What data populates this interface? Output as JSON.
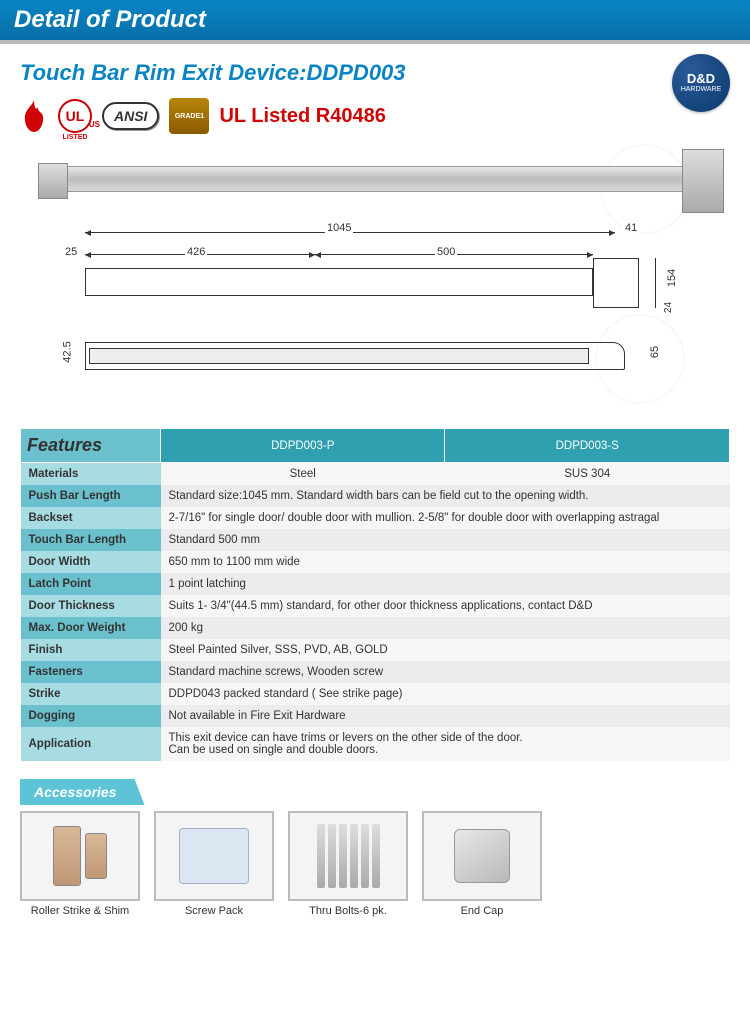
{
  "header": {
    "title": "Detail of Product"
  },
  "product": {
    "title": "Touch Bar Rim Exit Device:DDPD003",
    "ul_text": "UL Listed R40486",
    "ansi": "ANSI",
    "ul_mark": "UL",
    "ul_us": "US",
    "ul_listed": "LISTED",
    "grade": "GRADE1"
  },
  "logo": {
    "line1": "D&D",
    "line2": "HARDWARE"
  },
  "dimensions": {
    "total_length": "1045",
    "end_w": "41",
    "left_margin": "25",
    "seg_a": "426",
    "seg_b": "500",
    "head_h": "154",
    "head_in": "24",
    "side_a": "42.5",
    "side_b": "65"
  },
  "features": {
    "header_label": "Features",
    "cols": [
      "DDPD003-P",
      "DDPD003-S"
    ],
    "rows": [
      {
        "label": "Materials",
        "vals": [
          "Steel",
          "SUS 304"
        ]
      },
      {
        "label": "Push Bar Length",
        "vals": [
          "Standard size:1045 mm. Standard width bars can be field cut to the opening width."
        ]
      },
      {
        "label": "Backset",
        "vals": [
          "2-7/16\" for single door/ double door with mullion. 2-5/8\" for double door with overlapping astragal"
        ]
      },
      {
        "label": "Touch Bar Length",
        "vals": [
          "Standard 500 mm"
        ]
      },
      {
        "label": "Door Width",
        "vals": [
          "650 mm to 1100 mm wide"
        ]
      },
      {
        "label": "Latch Point",
        "vals": [
          "1 point latching"
        ]
      },
      {
        "label": "Door Thickness",
        "vals": [
          "Suits 1- 3/4\"(44.5 mm) standard, for other door thickness applications, contact D&D"
        ]
      },
      {
        "label": "Max. Door Weight",
        "vals": [
          "200 kg"
        ]
      },
      {
        "label": "Finish",
        "vals": [
          "Steel Painted Silver, SSS, PVD, AB, GOLD"
        ]
      },
      {
        "label": "Fasteners",
        "vals": [
          "Standard machine screws, Wooden screw"
        ]
      },
      {
        "label": "Strike",
        "vals": [
          "DDPD043 packed standard ( See strike page)"
        ]
      },
      {
        "label": "Dogging",
        "vals": [
          "Not available in Fire Exit Hardware"
        ]
      },
      {
        "label": "Application",
        "vals": [
          "This exit device can have trims or levers on the other side of the door.\nCan be used on single and double doors."
        ]
      }
    ]
  },
  "accessories": {
    "label": "Accessories",
    "items": [
      {
        "name": "Roller Strike & Shim"
      },
      {
        "name": "Screw Pack"
      },
      {
        "name": "Thru Bolts-6 pk."
      },
      {
        "name": "End Cap"
      }
    ]
  },
  "colors": {
    "brand_blue": "#0a84c4",
    "teal_dark": "#2fa0b0",
    "teal_mid": "#6ac0cc",
    "teal_light": "#a7dce2",
    "red": "#d00404"
  }
}
